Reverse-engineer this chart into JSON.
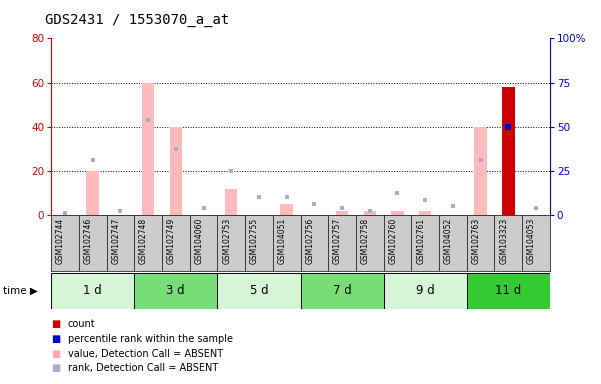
{
  "title": "GDS2431 / 1553070_a_at",
  "samples": [
    "GSM102744",
    "GSM102746",
    "GSM102747",
    "GSM102748",
    "GSM102749",
    "GSM104060",
    "GSM102753",
    "GSM102755",
    "GSM104051",
    "GSM102756",
    "GSM102757",
    "GSM102758",
    "GSM102760",
    "GSM102761",
    "GSM104052",
    "GSM102763",
    "GSM103323",
    "GSM104053"
  ],
  "time_groups": [
    {
      "label": "1 d",
      "start": 0,
      "end": 3,
      "color": "#d6f5d6"
    },
    {
      "label": "3 d",
      "start": 3,
      "end": 6,
      "color": "#77dd77"
    },
    {
      "label": "5 d",
      "start": 6,
      "end": 9,
      "color": "#d6f5d6"
    },
    {
      "label": "7 d",
      "start": 9,
      "end": 12,
      "color": "#77dd77"
    },
    {
      "label": "9 d",
      "start": 12,
      "end": 15,
      "color": "#d6f5d6"
    },
    {
      "label": "11 d",
      "start": 15,
      "end": 18,
      "color": "#33cc33"
    }
  ],
  "pink_bars": [
    0,
    20,
    0,
    60,
    40,
    0,
    12,
    0,
    5,
    0,
    2,
    2,
    2,
    2,
    0,
    40,
    0,
    0
  ],
  "blue_squares": [
    1,
    25,
    2,
    43,
    30,
    3,
    20,
    8,
    8,
    5,
    3,
    2,
    10,
    7,
    4,
    25,
    40,
    3
  ],
  "red_bar_index": 16,
  "red_bar_value": 58,
  "blue_dot_index": 16,
  "blue_dot_value": 40,
  "ylim_left": [
    0,
    80
  ],
  "ylim_right": [
    0,
    100
  ],
  "yticks_left": [
    0,
    20,
    40,
    60,
    80
  ],
  "yticks_right": [
    0,
    25,
    50,
    75,
    100
  ],
  "left_axis_color": "#cc0000",
  "right_axis_color": "#0000cc",
  "bg_color": "#ffffff",
  "sample_bg": "#cccccc",
  "legend_items": [
    {
      "color": "#cc0000",
      "label": "count"
    },
    {
      "color": "#0000cc",
      "label": "percentile rank within the sample"
    },
    {
      "color": "#ffaaaa",
      "label": "value, Detection Call = ABSENT"
    },
    {
      "color": "#aaaacc",
      "label": "rank, Detection Call = ABSENT"
    }
  ]
}
